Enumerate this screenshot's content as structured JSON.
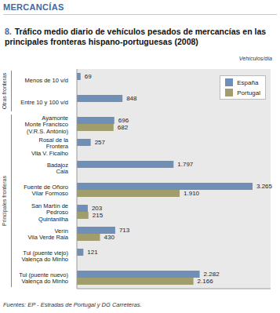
{
  "header": "MERCANCÍAS",
  "chart_data": {
    "type": "bar",
    "orientation": "horizontal",
    "number": "8.",
    "title": "Tráfico medio diario de vehículos pesados de mercancías en las principales fronteras hispano-portuguesas (2008)",
    "unit": "Vehículos/día",
    "source": "Fuentes: EP - Estradas de Portugal y DG Carreteras.",
    "categories": [
      "Menos de 10 v/d",
      "Entre 10 y 100 v/d",
      "Ayamonte\nMonte Francisco\n(V.R.S. António)",
      "Rosal de la\nFrontera\nVila V. Ficalho",
      "Badajoz\nCaia",
      "Fuente de Oñoro\nVilar Formoso",
      "San Martín de\nPedroso\nQuintanilha",
      "Verín\nVila Verde Raia",
      "Tui (puente viejo)\nValença do Minho",
      "Tui (puente nuevo)\nValença do Minho"
    ],
    "category_groups": [
      {
        "label": "Otras fronteras",
        "categories": [
          "Menos de 10 v/d",
          "Entre 10 y 100 v/d"
        ]
      },
      {
        "label": "Principales fronteras",
        "categories": [
          "Ayamonte\nMonte Francisco\n(V.R.S. António)",
          "Rosal de la\nFrontera\nVila V. Ficalho",
          "Badajoz\nCaia",
          "Fuente de Oñoro\nVilar Formoso",
          "San Martín de\nPedroso\nQuintanilha",
          "Verín\nVila Verde Raia",
          "Tui (puente viejo)\nValença do Minho",
          "Tui (puente nuevo)\nValença do Minho"
        ]
      }
    ],
    "series": [
      {
        "name": "España",
        "color": "#6f8fb6",
        "values": [
          69,
          848,
          696,
          257,
          1797,
          3265,
          203,
          713,
          121,
          2282
        ],
        "value_labels": [
          "69",
          "848",
          "696",
          "257",
          "1.797",
          "3.265",
          "203",
          "713",
          "121",
          "2.282"
        ]
      },
      {
        "name": "Portugal",
        "color": "#a19d6c",
        "values": [
          null,
          null,
          682,
          null,
          null,
          1910,
          215,
          430,
          null,
          2166
        ],
        "value_labels": [
          null,
          null,
          "682",
          null,
          null,
          "1.910",
          "215",
          "430",
          null,
          "2.166"
        ]
      }
    ],
    "xlim": [
      0,
      3600
    ],
    "tick_labels": false,
    "data_labels": true,
    "grid": false,
    "legend": "top-right"
  }
}
